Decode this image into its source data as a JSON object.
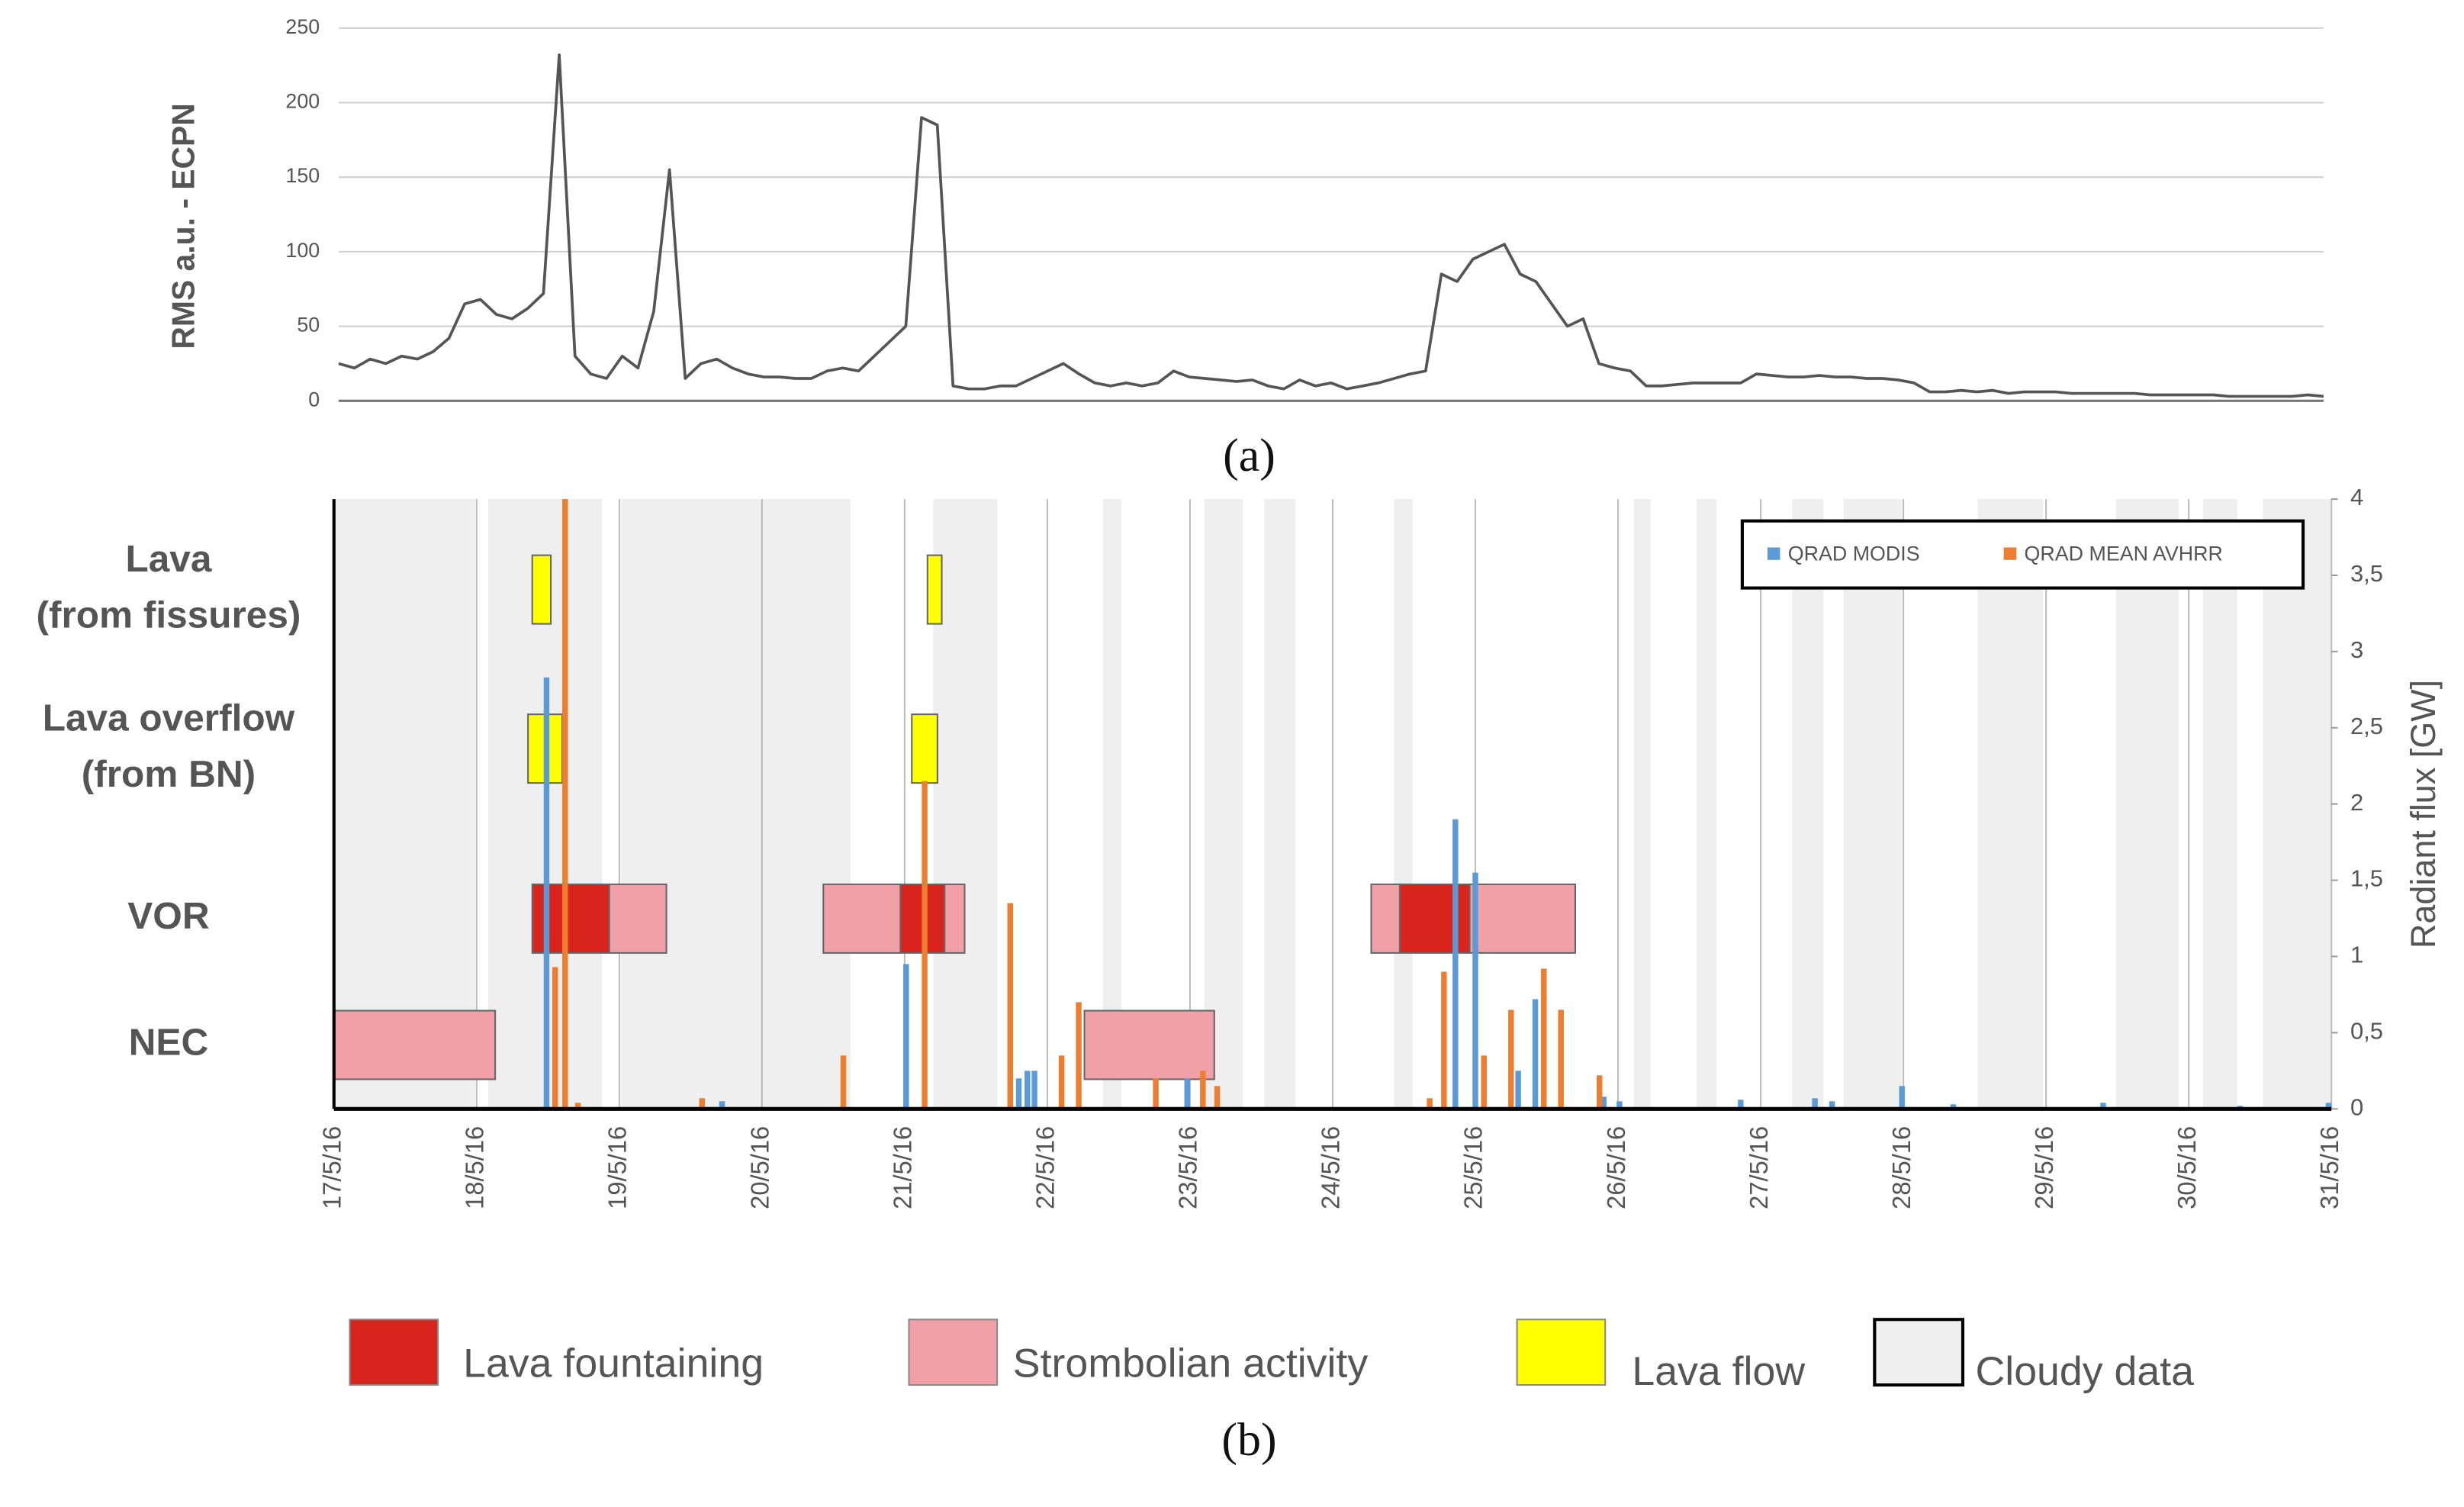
{
  "chart_data": [
    {
      "type": "line",
      "label": "(a)",
      "ylabel": "RMS a.u. - ECPN",
      "color": "#555555",
      "ylim": [
        0,
        250
      ],
      "yticks": [
        0,
        50,
        100,
        150,
        200,
        250
      ],
      "grid": true,
      "values": [
        25,
        22,
        28,
        25,
        30,
        28,
        33,
        42,
        65,
        68,
        58,
        55,
        62,
        72,
        232,
        30,
        18,
        15,
        30,
        22,
        60,
        155,
        15,
        25,
        28,
        22,
        18,
        16,
        16,
        15,
        15,
        20,
        22,
        20,
        30,
        40,
        50,
        190,
        185,
        10,
        8,
        8,
        10,
        10,
        15,
        20,
        25,
        18,
        12,
        10,
        12,
        10,
        12,
        20,
        16,
        15,
        14,
        13,
        14,
        10,
        8,
        14,
        10,
        12,
        8,
        10,
        12,
        15,
        18,
        20,
        85,
        80,
        95,
        100,
        105,
        85,
        80,
        65,
        50,
        55,
        25,
        22,
        20,
        10,
        10,
        11,
        12,
        12,
        12,
        12,
        18,
        17,
        16,
        16,
        17,
        16,
        16,
        15,
        15,
        14,
        12,
        6,
        6,
        7,
        6,
        7,
        5,
        6,
        6,
        6,
        5,
        5,
        5,
        5,
        5,
        4,
        4,
        4,
        4,
        4,
        3,
        3,
        3,
        3,
        3,
        4,
        3
      ]
    },
    {
      "type": "timeline",
      "label": "(b)",
      "xlim": [
        0,
        14
      ],
      "xticks": [
        {
          "value": 0,
          "label": "17/5/16"
        },
        {
          "value": 1,
          "label": "18/5/16"
        },
        {
          "value": 2,
          "label": "19/5/16"
        },
        {
          "value": 3,
          "label": "20/5/16"
        },
        {
          "value": 4,
          "label": "21/5/16"
        },
        {
          "value": 5,
          "label": "22/5/16"
        },
        {
          "value": 6,
          "label": "23/5/16"
        },
        {
          "value": 7,
          "label": "24/5/16"
        },
        {
          "value": 8,
          "label": "25/5/16"
        },
        {
          "value": 9,
          "label": "26/5/16"
        },
        {
          "value": 10,
          "label": "27/5/16"
        },
        {
          "value": 11,
          "label": "28/5/16"
        },
        {
          "value": 12,
          "label": "29/5/16"
        },
        {
          "value": 13,
          "label": "30/5/16"
        },
        {
          "value": 14,
          "label": "31/5/16"
        }
      ],
      "grid": true,
      "rows": [
        {
          "label": [
            "Lava",
            "(from fissures)"
          ]
        },
        {
          "label": [
            "Lava overflow",
            "(from BN)"
          ]
        },
        {
          "label": [
            "VOR"
          ]
        },
        {
          "label": [
            "NEC"
          ]
        }
      ],
      "activities": [
        {
          "name": "Lava fountaining",
          "color": "#d9231d",
          "spans": [
            {
              "row": 2,
              "start": 1.39,
              "end": 1.93
            },
            {
              "row": 2,
              "start": 3.97,
              "end": 4.28
            },
            {
              "row": 2,
              "start": 7.47,
              "end": 7.96
            }
          ]
        },
        {
          "name": "Strombolian activity",
          "color": "#f0a0a6",
          "spans": [
            {
              "row": 2,
              "start": 1.93,
              "end": 2.33
            },
            {
              "row": 2,
              "start": 3.43,
              "end": 3.97
            },
            {
              "row": 2,
              "start": 4.28,
              "end": 4.42
            },
            {
              "row": 2,
              "start": 7.27,
              "end": 7.47
            },
            {
              "row": 2,
              "start": 7.96,
              "end": 8.7
            },
            {
              "row": 3,
              "start": 0,
              "end": 1.13
            },
            {
              "row": 3,
              "start": 5.26,
              "end": 6.17
            }
          ]
        },
        {
          "name": "Lava flow",
          "color": "#ffff00",
          "spans": [
            {
              "row": 0,
              "start": 1.39,
              "end": 1.52
            },
            {
              "row": 0,
              "start": 4.16,
              "end": 4.26
            },
            {
              "row": 1,
              "start": 1.36,
              "end": 1.6
            },
            {
              "row": 1,
              "start": 4.05,
              "end": 4.23
            }
          ]
        },
        {
          "name": "Cloudy data",
          "color": "#efefef",
          "spans": [
            {
              "start": 0,
              "end": 0.99
            },
            {
              "start": 1.08,
              "end": 1.88
            },
            {
              "start": 2.01,
              "end": 3.62
            },
            {
              "start": 4.2,
              "end": 4.65
            },
            {
              "start": 5.39,
              "end": 5.52
            },
            {
              "start": 6.1,
              "end": 6.37
            },
            {
              "start": 6.52,
              "end": 6.74
            },
            {
              "start": 7.43,
              "end": 7.56
            },
            {
              "start": 9.11,
              "end": 9.23
            },
            {
              "start": 9.55,
              "end": 9.69
            },
            {
              "start": 10.22,
              "end": 10.44
            },
            {
              "start": 10.58,
              "end": 10.99
            },
            {
              "start": 11.52,
              "end": 11.98
            },
            {
              "start": 12.49,
              "end": 12.93
            },
            {
              "start": 13.1,
              "end": 13.34
            },
            {
              "start": 13.52,
              "end": 14
            }
          ]
        }
      ],
      "y2label": "Radiant flux [GW]",
      "y2lim": [
        0,
        4
      ],
      "y2ticks": [
        0,
        {
          "value": 0.5,
          "label": "0,5"
        },
        1,
        {
          "value": 1.5,
          "label": "1,5"
        },
        2,
        {
          "value": 2.5,
          "label": "2,5"
        },
        3,
        {
          "value": 3.5,
          "label": "3,5"
        },
        4
      ],
      "legend": "upper right",
      "series": [
        {
          "name": "QRAD MODIS",
          "color": "#5b9bd5",
          "axis": "y2",
          "x": [
            1.49,
            2.72,
            4.01,
            4.8,
            4.86,
            4.91,
            5.98,
            7.86,
            8.0,
            8.3,
            8.42,
            8.9,
            9.01,
            9.86,
            10.38,
            10.5,
            10.99,
            11.35,
            12.4,
            13.36,
            13.98
          ],
          "values": [
            2.83,
            0.05,
            0.95,
            0.2,
            0.25,
            0.25,
            0.2,
            1.9,
            1.55,
            0.25,
            0.72,
            0.08,
            0.05,
            0.06,
            0.07,
            0.05,
            0.15,
            0.03,
            0.04,
            0.02,
            0.04
          ]
        },
        {
          "name": "QRAD MEAN AVHRR",
          "color": "#ed7d31",
          "axis": "y2",
          "x": [
            1.55,
            1.62,
            1.71,
            2.58,
            3.57,
            4.14,
            4.74,
            5.1,
            5.22,
            5.76,
            6.09,
            6.19,
            7.68,
            7.78,
            8.06,
            8.25,
            8.48,
            8.6,
            8.87
          ],
          "values": [
            0.93,
            4,
            0.04,
            0.07,
            0.35,
            2.15,
            1.35,
            0.35,
            0.7,
            0.2,
            0.25,
            0.15,
            0.07,
            0.9,
            0.35,
            0.65,
            0.92,
            0.65,
            0.22
          ]
        }
      ]
    }
  ]
}
